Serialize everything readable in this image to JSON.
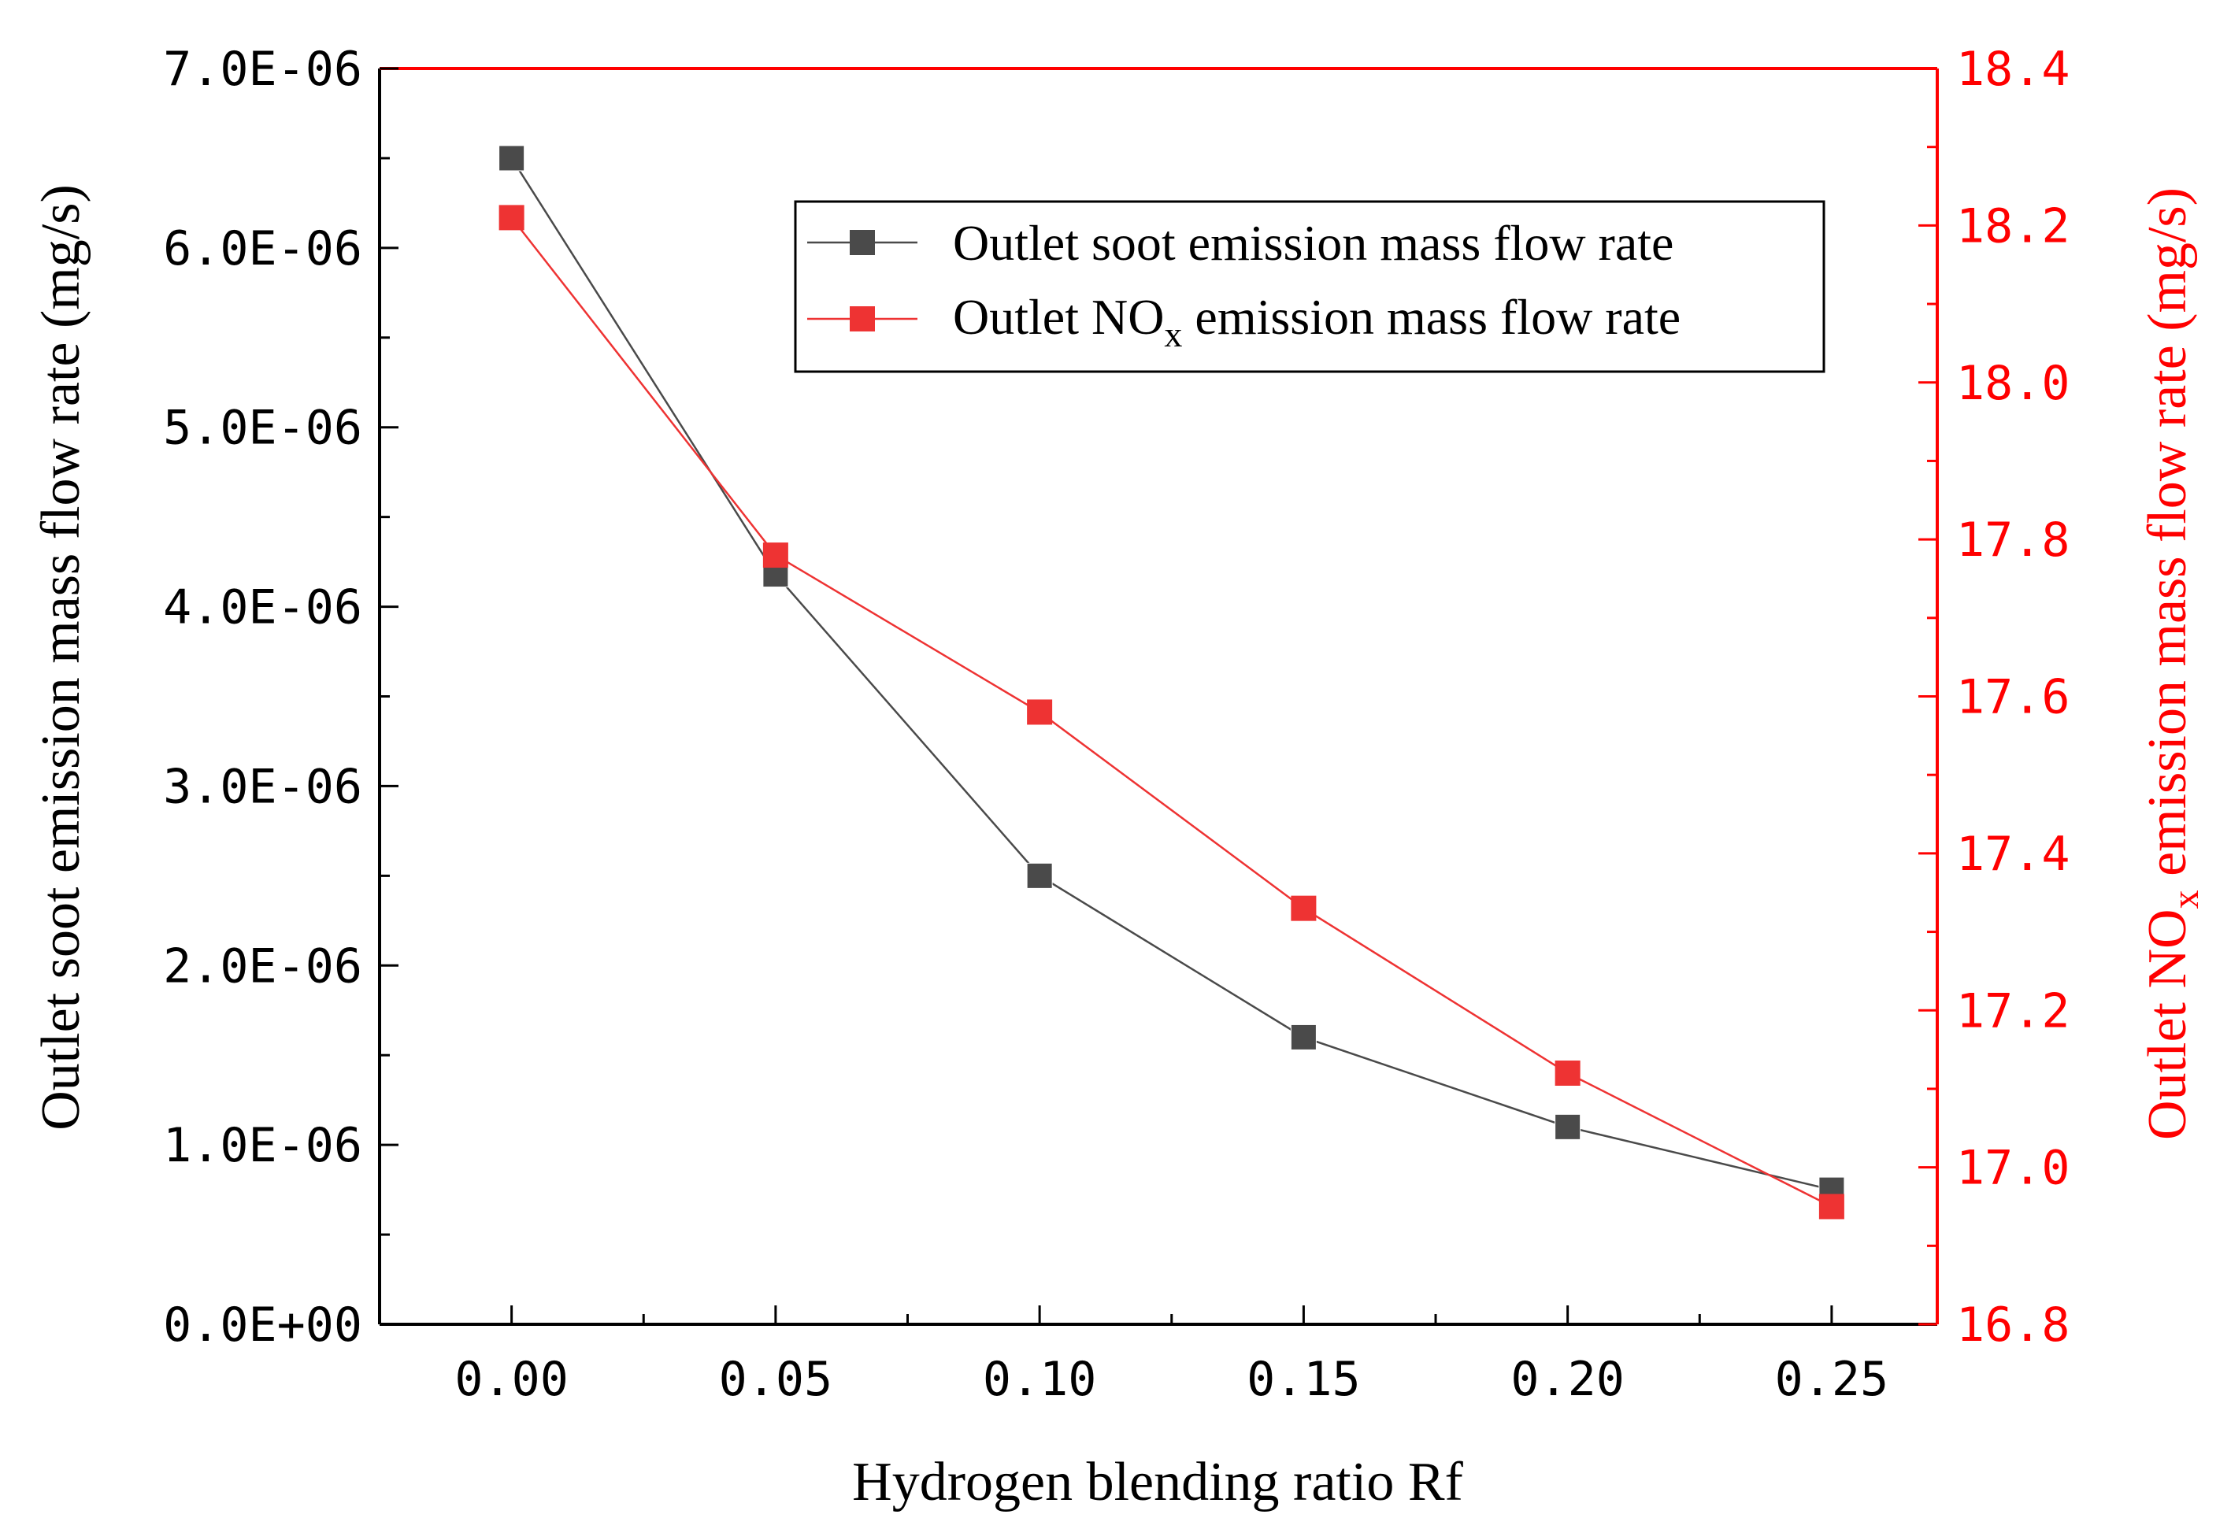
{
  "chart_data": {
    "type": "line",
    "x": [
      0.0,
      0.05,
      0.1,
      0.15,
      0.2,
      0.25
    ],
    "x_tick_labels": [
      "0.00",
      "0.05",
      "0.10",
      "0.15",
      "0.20",
      "0.25"
    ],
    "xlim": [
      -0.025,
      0.27
    ],
    "xlabel": "Hydrogen blending ratio Rf",
    "left_axis": {
      "label": "Outlet soot emission mass flow rate (mg/s)",
      "ylim": [
        0,
        7e-06
      ],
      "tick_values": [
        0,
        1e-06,
        2e-06,
        3e-06,
        4e-06,
        5e-06,
        6e-06,
        7e-06
      ],
      "tick_labels": [
        "0.0E+00",
        "1.0E-06",
        "2.0E-06",
        "3.0E-06",
        "4.0E-06",
        "5.0E-06",
        "6.0E-06",
        "7.0E-06"
      ]
    },
    "right_axis": {
      "label_prefix": "Outlet NO",
      "label_sub": "x",
      "label_suffix": " emission mass flow rate (mg/s)",
      "ylim": [
        16.8,
        18.4
      ],
      "tick_values": [
        16.8,
        17.0,
        17.2,
        17.4,
        17.6,
        17.8,
        18.0,
        18.2,
        18.4
      ],
      "tick_labels": [
        "16.8",
        "17.0",
        "17.2",
        "17.4",
        "17.6",
        "17.8",
        "18.0",
        "18.2",
        "18.4"
      ],
      "color": "#ff0000"
    },
    "series": [
      {
        "name": "Outlet soot emission mass flow rate",
        "axis": "left",
        "color": "#4a4a4a",
        "values": [
          6.5e-06,
          4.18e-06,
          2.5e-06,
          1.6e-06,
          1.1e-06,
          7.5e-07
        ]
      },
      {
        "name_prefix": "Outlet NO",
        "name_sub": "x",
        "name_suffix": " emission mass flow rate",
        "axis": "right",
        "color": "#ee3333",
        "values": [
          18.21,
          17.78,
          17.58,
          17.33,
          17.12,
          16.95
        ]
      }
    ],
    "legend_position": "top-right"
  }
}
